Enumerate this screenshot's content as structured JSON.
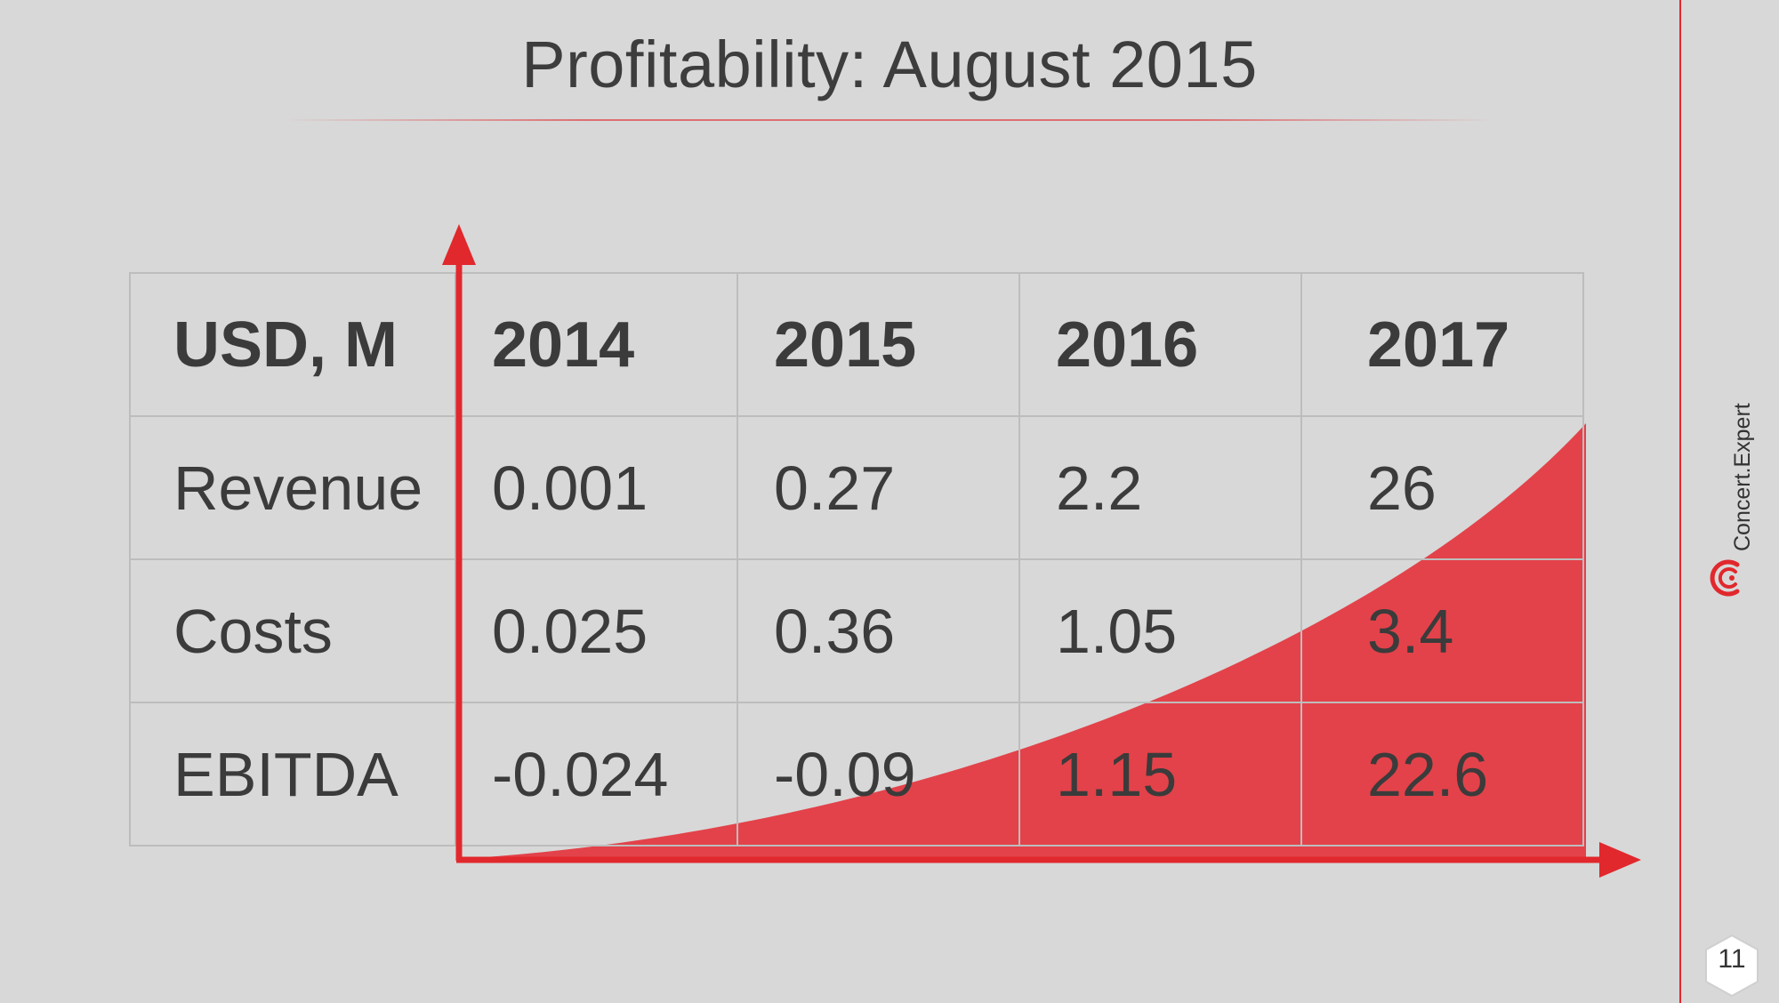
{
  "slide": {
    "title": "Profitability: August 2015",
    "page_number": "11",
    "brand_name": "Concert.Expert",
    "accent_color": "#e1282d",
    "fill_color": "#e3424a",
    "background_color": "#d8d8d8"
  },
  "table": {
    "header": [
      "USD, M",
      "2014",
      "2015",
      "2016",
      "2017"
    ],
    "rows": [
      {
        "label": "Revenue",
        "values": [
          "0.001",
          "0.27",
          "2.2",
          "26"
        ]
      },
      {
        "label": "Costs",
        "values": [
          "0.025",
          "0.36",
          "1.05",
          "3.4"
        ]
      },
      {
        "label": "EBITDA",
        "values": [
          "-0.024",
          "-0.09",
          "1.15",
          "22.6"
        ]
      }
    ]
  },
  "graphic": {
    "type": "growth-curve",
    "axis_arrows": [
      "up",
      "right"
    ],
    "icon": "logo-icon"
  }
}
